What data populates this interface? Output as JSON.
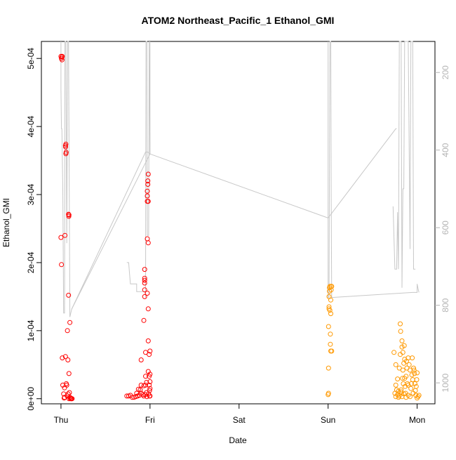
{
  "chart_data": {
    "type": "scatter",
    "title": "ATOM2 Northeast_Pacific_1 Ethanol_GMI",
    "xlabel": "Date",
    "ylabel": "Ethanol_GMI",
    "x_ticks": [
      {
        "label": "Thu",
        "day": 0
      },
      {
        "label": "Fri",
        "day": 1
      },
      {
        "label": "Sat",
        "day": 2
      },
      {
        "label": "Sun",
        "day": 3
      },
      {
        "label": "Mon",
        "day": 4
      }
    ],
    "xlim_days": [
      -0.22,
      4.2
    ],
    "ylim": [
      -7.5e-06,
      0.000525
    ],
    "y_ticks": [
      {
        "label": "0e+00",
        "value": 0
      },
      {
        "label": "1e-04",
        "value": 0.0001
      },
      {
        "label": "2e-04",
        "value": 0.0002
      },
      {
        "label": "3e-04",
        "value": 0.0003
      },
      {
        "label": "4e-04",
        "value": 0.0004
      },
      {
        "label": "5e-04",
        "value": 0.0005
      }
    ],
    "y2lim": [
      1054,
      120
    ],
    "y2_ticks": [
      {
        "label": "200",
        "value": 200
      },
      {
        "label": "400",
        "value": 400
      },
      {
        "label": "600",
        "value": 600
      },
      {
        "label": "800",
        "value": 800
      },
      {
        "label": "1000",
        "value": 1000
      }
    ],
    "grid": false,
    "colors": {
      "series_red": "#ff0000",
      "series_orange": "#ff9900",
      "pressure_line": "#c8c8c8",
      "axis": "#000000",
      "secondary_axis": "#b4b4b4"
    },
    "series": [
      {
        "color": "red",
        "points": [
          [
            0.0,
            0.000503
          ],
          [
            0.005,
            0.0005
          ],
          [
            0.01,
            0.000502
          ],
          [
            0.012,
            0.000498
          ],
          [
            0.015,
            0.000503
          ],
          [
            0.0,
            0.000237
          ],
          [
            0.005,
            0.000197
          ],
          [
            0.015,
            6e-05
          ],
          [
            0.02,
            2e-05
          ],
          [
            0.03,
            7e-06
          ],
          [
            0.035,
            1e-06
          ],
          [
            0.04,
            2e-06
          ],
          [
            0.04,
            1.6e-05
          ],
          [
            0.045,
            0.00024
          ],
          [
            0.05,
            6.2e-05
          ],
          [
            0.05,
            0.000372
          ],
          [
            0.052,
            0.00037
          ],
          [
            0.055,
            0.000374
          ],
          [
            0.055,
            0.00036
          ],
          [
            0.058,
            0.000362
          ],
          [
            0.06,
            2.2e-05
          ],
          [
            0.065,
            2e-05
          ],
          [
            0.07,
            4e-06
          ],
          [
            0.072,
            0.0001
          ],
          [
            0.078,
            5.7e-05
          ],
          [
            0.08,
            7e-06
          ],
          [
            0.085,
            0.000271
          ],
          [
            0.088,
            0.000268
          ],
          [
            0.09,
            0.00027
          ],
          [
            0.085,
            0.000152
          ],
          [
            0.09,
            3.7e-05
          ],
          [
            0.095,
            9e-06
          ],
          [
            0.1,
            0.000112
          ],
          [
            0.1,
            2e-06
          ],
          [
            0.105,
            0.0
          ],
          [
            0.11,
            1e-06
          ],
          [
            0.115,
            0.0
          ],
          [
            0.12,
            0.0
          ],
          [
            0.125,
            0.0
          ],
          [
            0.09,
            0.0
          ],
          [
            0.74,
            4e-06
          ],
          [
            0.76,
            4e-06
          ],
          [
            0.78,
            5e-06
          ],
          [
            0.8,
            2e-06
          ],
          [
            0.82,
            2e-06
          ],
          [
            0.84,
            3e-06
          ],
          [
            0.86,
            4e-06
          ],
          [
            0.88,
            5e-06
          ],
          [
            0.85,
            8e-06
          ],
          [
            0.87,
            1.4e-05
          ],
          [
            0.89,
            1.3e-05
          ],
          [
            0.9,
            2e-05
          ],
          [
            0.9,
            5.7e-05
          ],
          [
            0.9,
            8e-06
          ],
          [
            0.92,
            6e-06
          ],
          [
            0.93,
            0.000115
          ],
          [
            0.93,
            4e-06
          ],
          [
            0.93,
            1.9e-05
          ],
          [
            0.94,
            0.00015
          ],
          [
            0.94,
            0.00016
          ],
          [
            0.94,
            0.00017
          ],
          [
            0.94,
            0.000174
          ],
          [
            0.94,
            0.000177
          ],
          [
            0.94,
            0.00019
          ],
          [
            0.945,
            6e-06
          ],
          [
            0.95,
            2e-05
          ],
          [
            0.95,
            6.8e-05
          ],
          [
            0.95,
            3.3e-05
          ],
          [
            0.96,
            2.4e-05
          ],
          [
            0.96,
            9e-06
          ],
          [
            0.965,
            3e-06
          ],
          [
            0.97,
            0.000155
          ],
          [
            0.97,
            0.000235
          ],
          [
            0.97,
            0.00029
          ],
          [
            0.97,
            0.000298
          ],
          [
            0.97,
            0.000305
          ],
          [
            0.975,
            0.000315
          ],
          [
            0.975,
            0.00032
          ],
          [
            0.98,
            0.00033
          ],
          [
            0.98,
            0.00029
          ],
          [
            0.98,
            0.000229
          ],
          [
            0.98,
            0.000132
          ],
          [
            0.98,
            8.5e-05
          ],
          [
            0.98,
            4e-05
          ],
          [
            0.985,
            7e-06
          ],
          [
            0.99,
            6.5e-05
          ],
          [
            0.99,
            3.3e-05
          ],
          [
            0.99,
            2e-05
          ],
          [
            0.995,
            1.2e-05
          ],
          [
            0.995,
            4e-06
          ],
          [
            1.0,
            7e-05
          ],
          [
            1.0,
            3.6e-05
          ],
          [
            1.0,
            2.5e-05
          ],
          [
            1.0,
            1.5e-05
          ],
          [
            1.0,
            4e-06
          ]
        ]
      },
      {
        "color": "orange",
        "points": [
          [
            3.0,
            6e-06
          ],
          [
            3.005,
            8e-06
          ],
          [
            3.005,
            4.5e-05
          ],
          [
            3.005,
            0.000106
          ],
          [
            3.01,
            0.000132
          ],
          [
            3.01,
            0.000135
          ],
          [
            3.01,
            0.00015
          ],
          [
            3.015,
            0.000158
          ],
          [
            3.015,
            0.000163
          ],
          [
            3.02,
            0.000165
          ],
          [
            3.02,
            0.00013
          ],
          [
            3.025,
            9.5e-05
          ],
          [
            3.025,
            8e-05
          ],
          [
            3.03,
            7e-05
          ],
          [
            3.03,
            0.000125
          ],
          [
            3.03,
            0.000145
          ],
          [
            3.035,
            0.00016
          ],
          [
            3.035,
            0.000165
          ],
          [
            3.04,
            0.000165
          ],
          [
            3.04,
            7e-05
          ],
          [
            3.74,
            6.8e-05
          ],
          [
            3.75,
            8e-06
          ],
          [
            3.76,
            3e-06
          ],
          [
            3.76,
            2e-05
          ],
          [
            3.76,
            5e-05
          ],
          [
            3.77,
            1.3e-05
          ],
          [
            3.78,
            6e-06
          ],
          [
            3.78,
            2.9e-05
          ],
          [
            3.79,
            1.1e-05
          ],
          [
            3.79,
            2e-06
          ],
          [
            3.8,
            4e-06
          ],
          [
            3.8,
            4.5e-05
          ],
          [
            3.81,
            6.5e-05
          ],
          [
            3.81,
            0.00011
          ],
          [
            3.815,
            9.9e-05
          ],
          [
            3.82,
            1.3e-05
          ],
          [
            3.82,
            1e-05
          ],
          [
            3.83,
            3e-06
          ],
          [
            3.83,
            7.6e-05
          ],
          [
            3.83,
            8.5e-05
          ],
          [
            3.835,
            3e-05
          ],
          [
            3.84,
            6.8e-05
          ],
          [
            3.84,
            4.2e-05
          ],
          [
            3.845,
            2.2e-05
          ],
          [
            3.85,
            7e-06
          ],
          [
            3.85,
            5.2e-05
          ],
          [
            3.855,
            7.8e-05
          ],
          [
            3.86,
            5.8e-05
          ],
          [
            3.86,
            3e-05
          ],
          [
            3.865,
            1.8e-05
          ],
          [
            3.87,
            8e-06
          ],
          [
            3.875,
            2e-06
          ],
          [
            3.875,
            3.3e-05
          ],
          [
            3.88,
            5.5e-05
          ],
          [
            3.885,
            4.5e-05
          ],
          [
            3.89,
            2.2e-05
          ],
          [
            3.9,
            6e-05
          ],
          [
            3.9,
            5e-06
          ],
          [
            3.9,
            2e-05
          ],
          [
            3.91,
            5e-05
          ],
          [
            3.92,
            4.2e-05
          ],
          [
            3.92,
            3e-06
          ],
          [
            3.93,
            1.5e-05
          ],
          [
            3.935,
            2.2e-05
          ],
          [
            3.94,
            3.5e-05
          ],
          [
            3.945,
            6e-05
          ],
          [
            3.95,
            2.8e-05
          ],
          [
            3.955,
            8e-06
          ],
          [
            3.96,
            4.5e-05
          ],
          [
            3.965,
            4.2e-05
          ],
          [
            3.97,
            3.7e-05
          ],
          [
            3.975,
            2.2e-05
          ],
          [
            3.98,
            1.2e-05
          ],
          [
            3.985,
            5e-06
          ],
          [
            3.99,
            1.8e-05
          ],
          [
            3.995,
            2.8e-05
          ],
          [
            4.0,
            3.8e-05
          ],
          [
            4.0,
            1e-06
          ],
          [
            4.01,
            3e-06
          ],
          [
            4.02,
            5e-06
          ]
        ]
      }
    ],
    "pressure_line": {
      "axis": "secondary",
      "points": [
        [
          0.0,
          175
        ],
        [
          0.0,
          125
        ],
        [
          0.005,
          325
        ],
        [
          0.01,
          325
        ],
        [
          0.02,
          500
        ],
        [
          0.03,
          820
        ],
        [
          0.04,
          820
        ],
        [
          0.045,
          120
        ],
        [
          0.06,
          120
        ],
        [
          0.07,
          640
        ],
        [
          0.08,
          120
        ],
        [
          0.09,
          120
        ],
        [
          0.1,
          830
        ],
        [
          0.11,
          830
        ],
        [
          0.12,
          810
        ],
        [
          0.95,
          405
        ],
        [
          0.975,
          405
        ],
        [
          1.0,
          410
        ],
        [
          1.0,
          120
        ],
        [
          0.99,
          120
        ],
        [
          0.985,
          620
        ],
        [
          0.97,
          620
        ],
        [
          0.96,
          120
        ],
        [
          0.95,
          120
        ],
        [
          0.94,
          780
        ],
        [
          0.92,
          775
        ],
        [
          0.91,
          750
        ],
        [
          0.9,
          745
        ],
        [
          0.85,
          745
        ],
        [
          0.85,
          720
        ],
        [
          0.8,
          720
        ],
        [
          0.77,
          720
        ],
        [
          0.77,
          690
        ],
        [
          0.75,
          690
        ],
        [
          0.73,
          880
        ],
        [
          0.73,
          690
        ],
        [
          0.75,
          690
        ]
      ],
      "segments": [
        [
          [
            0.1,
            830
          ],
          [
            0.12,
            810
          ],
          [
            0.95,
            405
          ],
          [
            0.975,
            405
          ],
          [
            1.0,
            410
          ]
        ],
        [
          [
            1.0,
            410
          ],
          [
            0.99,
            120
          ],
          [
            0.985,
            620
          ],
          [
            0.97,
            620
          ],
          [
            0.965,
            120
          ],
          [
            0.955,
            120
          ],
          [
            0.95,
            780
          ]
        ],
        [
          [
            0.74,
            690
          ],
          [
            0.76,
            690
          ],
          [
            0.77,
            720
          ],
          [
            0.78,
            745
          ],
          [
            0.85,
            745
          ],
          [
            0.85,
            765
          ],
          [
            0.95,
            765
          ]
        ],
        [
          [
            0.0,
            120
          ],
          [
            0.0,
            245
          ],
          [
            0.005,
            345
          ],
          [
            0.01,
            345
          ],
          [
            0.02,
            500
          ],
          [
            0.03,
            820
          ],
          [
            0.04,
            820
          ],
          [
            0.045,
            120
          ],
          [
            0.055,
            120
          ],
          [
            0.065,
            640
          ],
          [
            0.075,
            120
          ],
          [
            0.085,
            120
          ],
          [
            0.1,
            830
          ]
        ],
        [
          [
            0.12,
            810
          ],
          [
            1.0,
            410
          ]
        ],
        [
          [
            1.0,
            410
          ],
          [
            1.0,
            120
          ]
        ],
        [
          [
            1.0,
            410
          ],
          [
            3.0,
            575
          ],
          [
            3.76,
            345
          ],
          [
            3.77,
            345
          ]
        ],
        [
          [
            3.0,
            120
          ],
          [
            3.0,
            780
          ],
          [
            3.01,
            780
          ],
          [
            3.02,
            120
          ],
          [
            3.03,
            120
          ],
          [
            3.035,
            520
          ],
          [
            3.04,
            780
          ]
        ],
        [
          [
            3.04,
            780
          ],
          [
            3.95,
            767
          ],
          [
            4.0,
            767
          ],
          [
            4.0,
            745
          ],
          [
            4.01,
            757
          ],
          [
            4.02,
            767
          ]
        ],
        [
          [
            3.73,
            545
          ],
          [
            3.75,
            707
          ],
          [
            3.77,
            707
          ],
          [
            3.78,
            560
          ],
          [
            3.79,
            707
          ],
          [
            3.8,
            120
          ],
          [
            3.82,
            120
          ],
          [
            3.83,
            755
          ],
          [
            3.84,
            500
          ],
          [
            3.85,
            500
          ],
          [
            3.86,
            120
          ],
          [
            3.88,
            120
          ],
          [
            3.9,
            120
          ],
          [
            3.92,
            655
          ],
          [
            3.93,
            120
          ],
          [
            3.95,
            120
          ],
          [
            3.96,
            707
          ],
          [
            3.98,
            707
          ]
        ]
      ]
    }
  }
}
